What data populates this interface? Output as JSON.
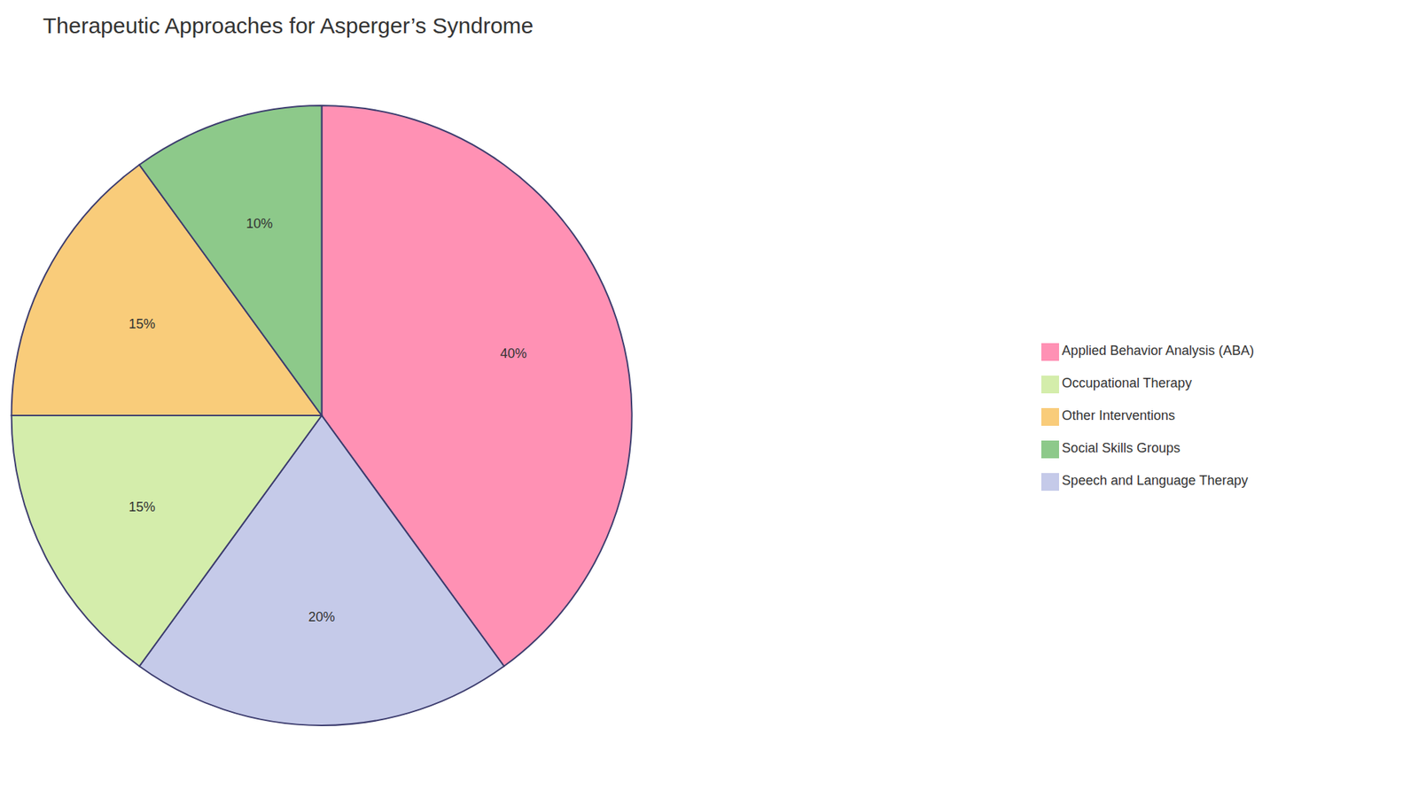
{
  "chart_data": {
    "type": "pie",
    "title": "Therapeutic Approaches for Asperger’s Syndrome",
    "categories": [
      "Applied Behavior Analysis (ABA)",
      "Speech and Language Therapy",
      "Occupational Therapy",
      "Other Interventions",
      "Social Skills Groups"
    ],
    "values": [
      40,
      20,
      15,
      15,
      10
    ],
    "value_labels": [
      "40%",
      "20%",
      "15%",
      "15%",
      "10%"
    ],
    "colors": [
      "#FF91B4",
      "#C5CAE9",
      "#D4EDAB",
      "#F9CC7A",
      "#8DC98A"
    ],
    "data_labels": true,
    "legend": "right"
  }
}
